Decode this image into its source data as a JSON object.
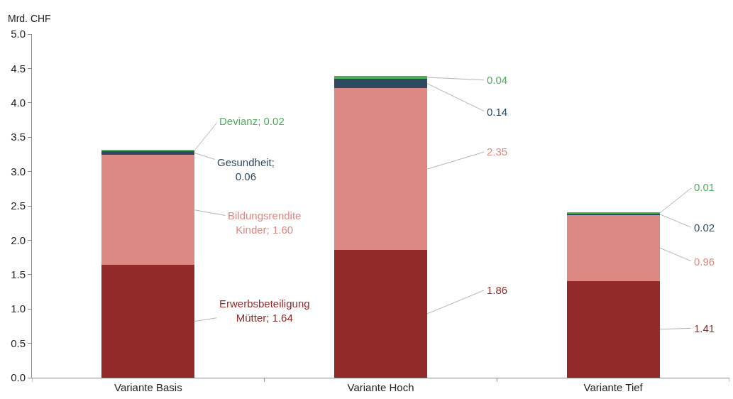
{
  "chart_data": {
    "type": "bar",
    "stacked": true,
    "ylabel": "Mrd. CHF",
    "categories": [
      "Variante Basis",
      "Variante Hoch",
      "Variante Tief"
    ],
    "series": [
      {
        "color": "#922a2a",
        "values": [
          1.64,
          1.86,
          1.41
        ],
        "value_labels": [
          "Erwerbsbeteiligung Mütter; 1.64",
          "1.86",
          "1.41"
        ]
      },
      {
        "color": "#de8884",
        "values": [
          1.6,
          2.35,
          0.96
        ],
        "value_labels": [
          "Bildungsrendite Kinder; 1.60",
          "2.35",
          "0.96"
        ]
      },
      {
        "color": "#2e4a62",
        "values": [
          0.06,
          0.14,
          0.02
        ],
        "value_labels": [
          "Gesundheit; 0.06",
          "0.14",
          "0.02"
        ]
      },
      {
        "color": "#4caf5a",
        "values": [
          0.02,
          0.04,
          0.01
        ],
        "value_labels": [
          "Devianz; 0.02",
          "0.04",
          "0.01"
        ]
      }
    ],
    "ylim": [
      0,
      5
    ],
    "yticks": [
      {
        "value": 0,
        "label": "0.0"
      },
      {
        "value": 0.5,
        "label": "0.5"
      },
      {
        "value": 1,
        "label": "1.0"
      },
      {
        "value": 1.5,
        "label": "1.5"
      },
      {
        "value": 2,
        "label": "2.0"
      },
      {
        "value": 2.5,
        "label": "2.5"
      },
      {
        "value": 3,
        "label": "3.0"
      },
      {
        "value": 3.5,
        "label": "3.5"
      },
      {
        "value": 4,
        "label": "4.0"
      },
      {
        "value": 4.5,
        "label": "4.5"
      },
      {
        "value": 5,
        "label": "5.0"
      }
    ],
    "relative": false
  }
}
